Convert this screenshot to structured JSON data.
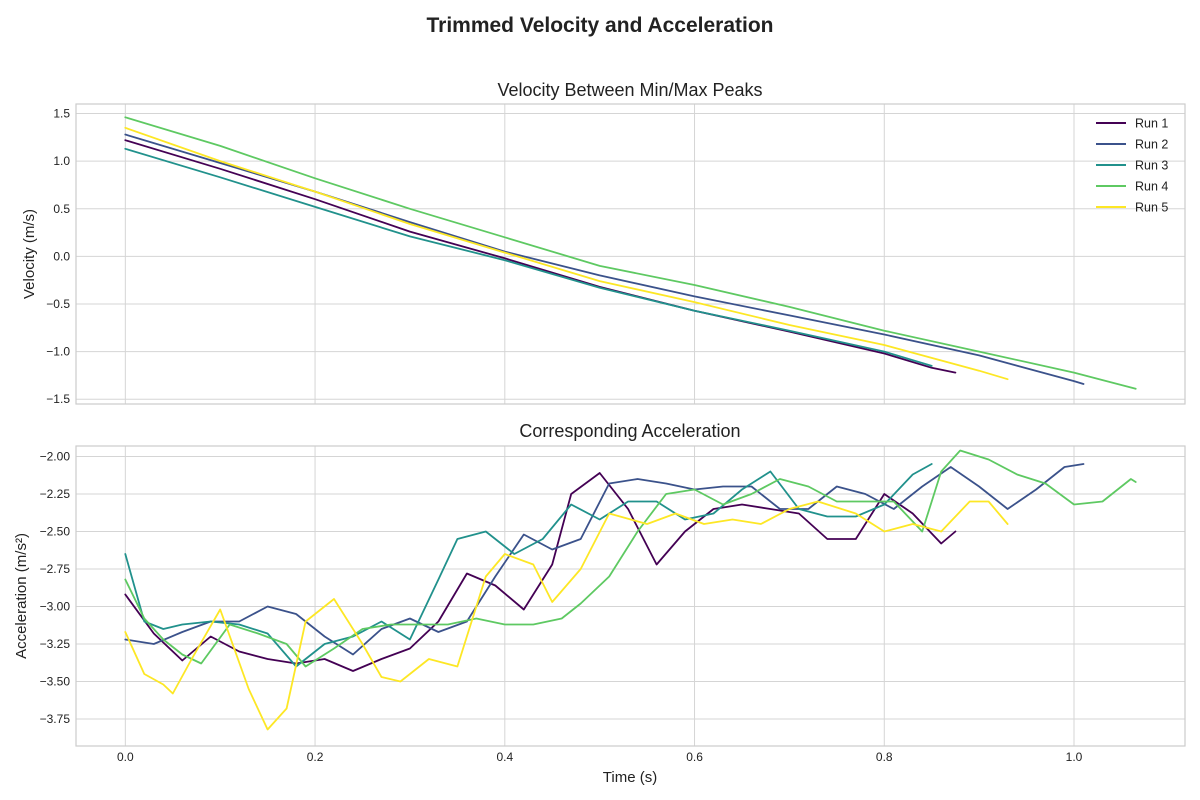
{
  "figure": {
    "title": "Trimmed Velocity and Acceleration"
  },
  "chart_data": [
    {
      "type": "line",
      "title": "Velocity Between Min/Max Peaks",
      "xlabel": "",
      "ylabel": "Velocity (m/s)",
      "xlim": [
        -0.052,
        1.117
      ],
      "ylim": [
        -1.55,
        1.6
      ],
      "yticks": [
        1.5,
        1.0,
        0.5,
        0.0,
        -0.5,
        -1.0,
        -1.5
      ],
      "ytick_labels": [
        "1.5",
        "1.0",
        "0.5",
        "0.0",
        "−0.5",
        "−1.0",
        "−1.5"
      ],
      "xticks": [
        0.0,
        0.2,
        0.4,
        0.6,
        0.8,
        1.0
      ],
      "grid": true,
      "legend": {
        "position": "top-right",
        "entries": [
          "Run 1",
          "Run 2",
          "Run 3",
          "Run 4",
          "Run 5"
        ]
      },
      "series": [
        {
          "name": "Run 1",
          "color": "#440154",
          "x": [
            0,
            0.1,
            0.2,
            0.3,
            0.4,
            0.5,
            0.6,
            0.7,
            0.8,
            0.85,
            0.875
          ],
          "y": [
            1.22,
            0.92,
            0.6,
            0.26,
            -0.02,
            -0.32,
            -0.57,
            -0.79,
            -1.02,
            -1.17,
            -1.22
          ]
        },
        {
          "name": "Run 2",
          "color": "#3b528b",
          "x": [
            0,
            0.1,
            0.2,
            0.3,
            0.4,
            0.5,
            0.6,
            0.7,
            0.8,
            0.9,
            1.0,
            1.01
          ],
          "y": [
            1.28,
            0.98,
            0.68,
            0.36,
            0.05,
            -0.2,
            -0.42,
            -0.62,
            -0.82,
            -1.04,
            -1.31,
            -1.34
          ]
        },
        {
          "name": "Run 3",
          "color": "#21918c",
          "x": [
            0,
            0.1,
            0.2,
            0.3,
            0.4,
            0.5,
            0.6,
            0.7,
            0.8,
            0.85
          ],
          "y": [
            1.13,
            0.83,
            0.52,
            0.21,
            -0.04,
            -0.33,
            -0.57,
            -0.78,
            -1.0,
            -1.15
          ]
        },
        {
          "name": "Run 4",
          "color": "#5ec962",
          "x": [
            0,
            0.1,
            0.2,
            0.3,
            0.4,
            0.5,
            0.6,
            0.7,
            0.8,
            0.9,
            1.0,
            1.065
          ],
          "y": [
            1.46,
            1.16,
            0.82,
            0.5,
            0.2,
            -0.1,
            -0.3,
            -0.53,
            -0.78,
            -1.0,
            -1.22,
            -1.39
          ]
        },
        {
          "name": "Run 5",
          "color": "#fde725",
          "x": [
            0,
            0.1,
            0.2,
            0.3,
            0.4,
            0.5,
            0.6,
            0.7,
            0.8,
            0.9,
            0.93
          ],
          "y": [
            1.35,
            1.0,
            0.68,
            0.34,
            0.04,
            -0.26,
            -0.48,
            -0.72,
            -0.93,
            -1.2,
            -1.29
          ]
        }
      ]
    },
    {
      "type": "line",
      "title": "Corresponding Acceleration",
      "xlabel": "Time (s)",
      "ylabel": "Acceleration (m/s²)",
      "xlim": [
        -0.052,
        1.117
      ],
      "ylim": [
        -3.93,
        -1.93
      ],
      "yticks": [
        -2.0,
        -2.25,
        -2.5,
        -2.75,
        -3.0,
        -3.25,
        -3.5,
        -3.75
      ],
      "ytick_labels": [
        "−2.00",
        "−2.25",
        "−2.50",
        "−2.75",
        "−3.00",
        "−3.25",
        "−3.50",
        "−3.75"
      ],
      "xticks": [
        0.0,
        0.2,
        0.4,
        0.6,
        0.8,
        1.0
      ],
      "xtick_labels": [
        "0.0",
        "0.2",
        "0.4",
        "0.6",
        "0.8",
        "1.0"
      ],
      "grid": true,
      "series": [
        {
          "name": "Run 1",
          "color": "#440154",
          "x": [
            0,
            0.03,
            0.06,
            0.09,
            0.12,
            0.15,
            0.18,
            0.21,
            0.24,
            0.27,
            0.3,
            0.33,
            0.36,
            0.39,
            0.42,
            0.45,
            0.47,
            0.5,
            0.53,
            0.56,
            0.59,
            0.62,
            0.65,
            0.68,
            0.71,
            0.74,
            0.77,
            0.8,
            0.83,
            0.86,
            0.875
          ],
          "y": [
            -2.92,
            -3.18,
            -3.36,
            -3.2,
            -3.3,
            -3.35,
            -3.38,
            -3.35,
            -3.43,
            -3.35,
            -3.28,
            -3.1,
            -2.78,
            -2.86,
            -3.02,
            -2.72,
            -2.25,
            -2.11,
            -2.35,
            -2.72,
            -2.5,
            -2.35,
            -2.32,
            -2.35,
            -2.38,
            -2.55,
            -2.55,
            -2.25,
            -2.38,
            -2.58,
            -2.5
          ]
        },
        {
          "name": "Run 2",
          "color": "#3b528b",
          "x": [
            0,
            0.03,
            0.06,
            0.09,
            0.12,
            0.15,
            0.18,
            0.21,
            0.24,
            0.27,
            0.3,
            0.33,
            0.36,
            0.39,
            0.42,
            0.45,
            0.48,
            0.51,
            0.54,
            0.57,
            0.6,
            0.63,
            0.66,
            0.69,
            0.72,
            0.75,
            0.78,
            0.81,
            0.84,
            0.87,
            0.9,
            0.93,
            0.96,
            0.99,
            1.01
          ],
          "y": [
            -3.22,
            -3.25,
            -3.17,
            -3.1,
            -3.1,
            -3.0,
            -3.05,
            -3.2,
            -3.32,
            -3.15,
            -3.08,
            -3.17,
            -3.1,
            -2.8,
            -2.52,
            -2.62,
            -2.55,
            -2.18,
            -2.15,
            -2.18,
            -2.22,
            -2.2,
            -2.2,
            -2.35,
            -2.35,
            -2.2,
            -2.25,
            -2.35,
            -2.2,
            -2.07,
            -2.2,
            -2.35,
            -2.22,
            -2.07,
            -2.05
          ]
        },
        {
          "name": "Run 3",
          "color": "#21918c",
          "x": [
            0,
            0.02,
            0.04,
            0.06,
            0.09,
            0.12,
            0.15,
            0.18,
            0.21,
            0.24,
            0.27,
            0.3,
            0.33,
            0.35,
            0.38,
            0.41,
            0.44,
            0.47,
            0.5,
            0.53,
            0.56,
            0.59,
            0.62,
            0.65,
            0.68,
            0.71,
            0.74,
            0.77,
            0.8,
            0.83,
            0.85
          ],
          "y": [
            -2.65,
            -3.1,
            -3.15,
            -3.12,
            -3.1,
            -3.12,
            -3.18,
            -3.4,
            -3.25,
            -3.2,
            -3.1,
            -3.22,
            -2.82,
            -2.55,
            -2.5,
            -2.65,
            -2.55,
            -2.32,
            -2.42,
            -2.3,
            -2.3,
            -2.42,
            -2.38,
            -2.22,
            -2.1,
            -2.35,
            -2.4,
            -2.4,
            -2.32,
            -2.12,
            -2.05
          ]
        },
        {
          "name": "Run 4",
          "color": "#5ec962",
          "x": [
            0,
            0.02,
            0.04,
            0.06,
            0.08,
            0.11,
            0.14,
            0.17,
            0.19,
            0.22,
            0.25,
            0.28,
            0.31,
            0.34,
            0.37,
            0.4,
            0.43,
            0.46,
            0.48,
            0.51,
            0.54,
            0.57,
            0.6,
            0.63,
            0.66,
            0.69,
            0.72,
            0.75,
            0.78,
            0.81,
            0.84,
            0.86,
            0.88,
            0.91,
            0.94,
            0.97,
            1.0,
            1.03,
            1.06,
            1.065
          ],
          "y": [
            -2.82,
            -3.08,
            -3.22,
            -3.32,
            -3.38,
            -3.12,
            -3.18,
            -3.25,
            -3.4,
            -3.28,
            -3.15,
            -3.12,
            -3.12,
            -3.12,
            -3.08,
            -3.12,
            -3.12,
            -3.08,
            -2.98,
            -2.8,
            -2.5,
            -2.25,
            -2.22,
            -2.32,
            -2.25,
            -2.15,
            -2.2,
            -2.3,
            -2.3,
            -2.3,
            -2.5,
            -2.1,
            -1.96,
            -2.02,
            -2.12,
            -2.18,
            -2.32,
            -2.3,
            -2.15,
            -2.17
          ]
        },
        {
          "name": "Run 5",
          "color": "#fde725",
          "x": [
            0,
            0.02,
            0.04,
            0.05,
            0.07,
            0.1,
            0.13,
            0.15,
            0.17,
            0.19,
            0.22,
            0.25,
            0.27,
            0.29,
            0.32,
            0.35,
            0.38,
            0.4,
            0.43,
            0.45,
            0.48,
            0.51,
            0.55,
            0.58,
            0.61,
            0.64,
            0.67,
            0.7,
            0.73,
            0.77,
            0.8,
            0.83,
            0.86,
            0.89,
            0.91,
            0.93
          ],
          "y": [
            -3.17,
            -3.45,
            -3.52,
            -3.58,
            -3.35,
            -3.02,
            -3.55,
            -3.82,
            -3.68,
            -3.1,
            -2.95,
            -3.25,
            -3.47,
            -3.5,
            -3.35,
            -3.4,
            -2.8,
            -2.65,
            -2.72,
            -2.97,
            -2.75,
            -2.38,
            -2.45,
            -2.38,
            -2.45,
            -2.42,
            -2.45,
            -2.35,
            -2.3,
            -2.38,
            -2.5,
            -2.45,
            -2.5,
            -2.3,
            -2.3,
            -2.45
          ]
        }
      ]
    }
  ]
}
